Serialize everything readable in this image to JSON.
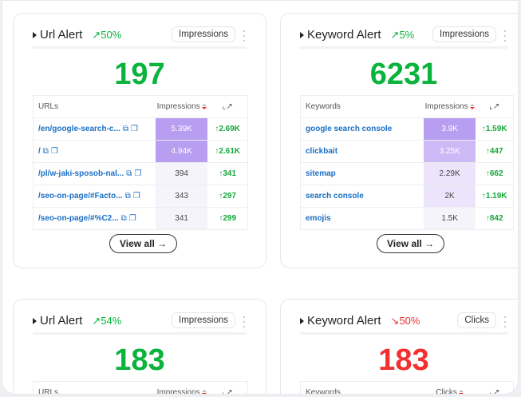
{
  "colors": {
    "up": "#0ab33c",
    "down": "#f23030",
    "link": "#1a6fc4",
    "heat_high": "#b79ef0",
    "heat_mid": "#cdb9f5",
    "heat_low": "#ece4fb"
  },
  "cards": [
    {
      "title": "Url Alert",
      "trend": "up",
      "trend_icon": "trend-up-icon",
      "change": "50%",
      "metric": "Impressions",
      "value": "197",
      "col1": "URLs",
      "col2": "Impressions",
      "view_all": "View all",
      "rows": [
        {
          "name": "/en/google-search-c...",
          "value": "5.39K",
          "delta": "↑2.69K",
          "heat": 1
        },
        {
          "name": "/",
          "value": "4.94K",
          "delta": "↑2.61K",
          "heat": 0.9
        },
        {
          "name": "/pl/w-jaki-sposob-nal...",
          "value": "394",
          "delta": "↑341",
          "heat": 0.05
        },
        {
          "name": "/seo-on-page/#Facto...",
          "value": "343",
          "delta": "↑297",
          "heat": 0.04
        },
        {
          "name": "/seo-on-page/#%C2...",
          "value": "341",
          "delta": "↑299",
          "heat": 0.04
        }
      ]
    },
    {
      "title": "Keyword Alert",
      "trend": "up",
      "trend_icon": "trend-up-icon",
      "change": "5%",
      "metric": "Impressions",
      "value": "6231",
      "col1": "Keywords",
      "col2": "Impressions",
      "view_all": "View all",
      "rows": [
        {
          "name": "google search console",
          "value": "3.9K",
          "delta": "↑1.59K",
          "heat": 1
        },
        {
          "name": "clickbait",
          "value": "3.25K",
          "delta": "↑447",
          "heat": 0.75
        },
        {
          "name": "sitemap",
          "value": "2.29K",
          "delta": "↑662",
          "heat": 0.35
        },
        {
          "name": "search console",
          "value": "2K",
          "delta": "↑1.19K",
          "heat": 0.25
        },
        {
          "name": "emojis",
          "value": "1.5K",
          "delta": "↑842",
          "heat": 0.1
        }
      ]
    },
    {
      "title": "Url Alert",
      "trend": "up",
      "trend_icon": "trend-up-icon",
      "change": "54%",
      "metric": "Impressions",
      "value": "183",
      "col1": "URLs",
      "col2": "Impressions"
    },
    {
      "title": "Keyword Alert",
      "trend": "down",
      "trend_icon": "trend-down-icon",
      "change": "50%",
      "metric": "Clicks",
      "value": "183",
      "col1": "Keywords",
      "col2": "Clicks"
    }
  ]
}
